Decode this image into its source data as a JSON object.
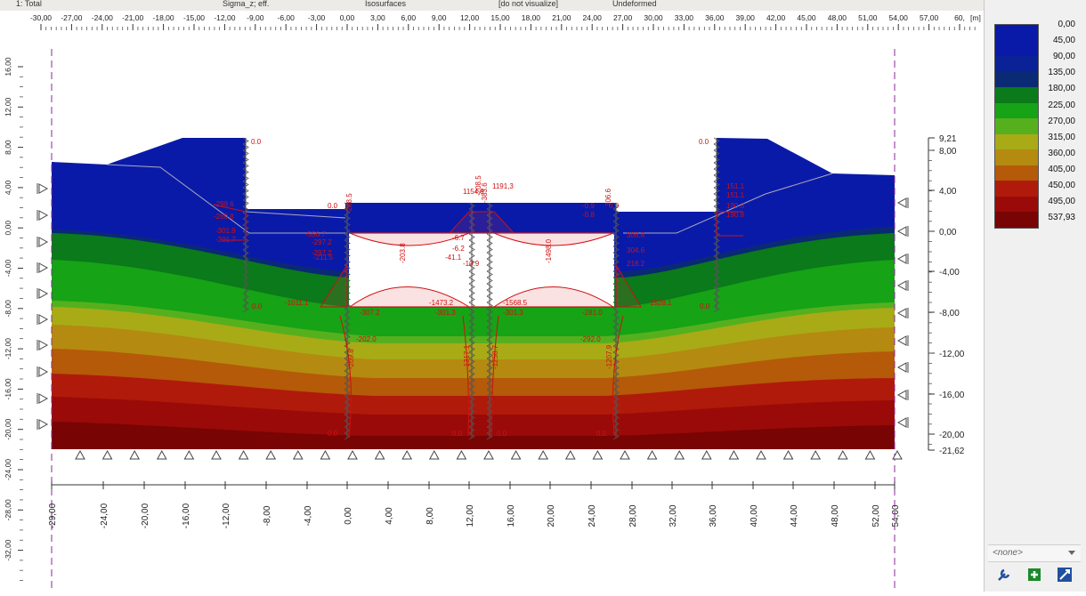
{
  "toolbar": {
    "fields": [
      "1: Total",
      "Sigma_z; eff.",
      "Isosurfaces",
      "[do not visualize]",
      "Undeformed"
    ]
  },
  "top_ruler": {
    "labels": [
      "-30,00",
      "-27,00",
      "-24,00",
      "-21,00",
      "-18,00",
      "-15,00",
      "-12,00",
      "-9,00",
      "-6,00",
      "-3,00",
      "0,00",
      "3,00",
      "6,00",
      "9,00",
      "12,00",
      "15,00",
      "18,00",
      "21,00",
      "24,00",
      "27,00",
      "30,00",
      "33,00",
      "36,00",
      "39,00",
      "42,00",
      "45,00",
      "48,00",
      "51,00",
      "54,00",
      "57,00",
      "60,"
    ],
    "unit": "[m]"
  },
  "left_ruler": {
    "labels": [
      "16,00",
      "12,00",
      "8,00",
      "4,00",
      "0,00",
      "-4,00",
      "-8,00",
      "-12,00",
      "-16,00",
      "-20,00",
      "-24,00",
      "-28,00",
      "-32,00"
    ]
  },
  "right_scale": {
    "labels": [
      "9,21",
      "8,00",
      "4,00",
      "0,00",
      "-4,00",
      "-8,00",
      "-12,00",
      "-16,00",
      "-20,00",
      "-21,62"
    ]
  },
  "bottom_scale": {
    "labels": [
      "-29,00",
      "-24,00",
      "-20,00",
      "-16,00",
      "-12,00",
      "-8,00",
      "-4,00",
      "0,00",
      "4,00",
      "8,00",
      "12,00",
      "16,00",
      "20,00",
      "24,00",
      "28,00",
      "32,00",
      "36,00",
      "40,00",
      "44,00",
      "48,00",
      "52,00",
      "54,00"
    ]
  },
  "legend": {
    "entries": [
      {
        "value": "0,00",
        "color": "#0a1aa8"
      },
      {
        "value": "45,00",
        "color": "#0a1aa8"
      },
      {
        "value": "90,00",
        "color": "#0b2296"
      },
      {
        "value": "135,00",
        "color": "#0a2a74"
      },
      {
        "value": "180,00",
        "color": "#0a7a1a"
      },
      {
        "value": "225,00",
        "color": "#16a316"
      },
      {
        "value": "270,00",
        "color": "#56b01e"
      },
      {
        "value": "315,00",
        "color": "#a8ab16"
      },
      {
        "value": "360,00",
        "color": "#b58a10"
      },
      {
        "value": "405,00",
        "color": "#b45a08"
      },
      {
        "value": "450,00",
        "color": "#b01a0a"
      },
      {
        "value": "495,00",
        "color": "#9a0a08"
      },
      {
        "value": "537,93",
        "color": "#780404"
      }
    ]
  },
  "dropdown": {
    "value": "<none>"
  },
  "annotations": {
    "left_wall": [
      "0.0",
      "0.0",
      "-298.6",
      "-260.8",
      "-301.9",
      "-301.7",
      "-2.0",
      "-2.0"
    ],
    "center": [
      "1154,9",
      "1191,3",
      "-208.5",
      "-383.6",
      "-6.7",
      "-6.2",
      "-41.1",
      "-10.9",
      "-1473.2",
      "-1568.5",
      "-307.2",
      "-301.3",
      "-6.4"
    ],
    "right_wall": [
      "0.0",
      "151.1",
      "151.1",
      "190.8",
      "190.8",
      "218.2",
      "304.6",
      "306.6",
      "1528.1",
      "-281.0",
      "0.0",
      "-0.9",
      "-0.8"
    ],
    "base_zeros": [
      "0.0",
      "0.0",
      "0.0",
      "0.0"
    ],
    "misc": [
      "-556.7",
      "-297.2",
      "-297.2",
      "-211.5",
      "-1011.1",
      "-1511.9",
      "-318.5",
      "-202.0",
      "-209.8",
      "-1498.0",
      "-1317.1",
      "-1258.7",
      "-292.0",
      "-203.8",
      "-1207.9"
    ]
  }
}
